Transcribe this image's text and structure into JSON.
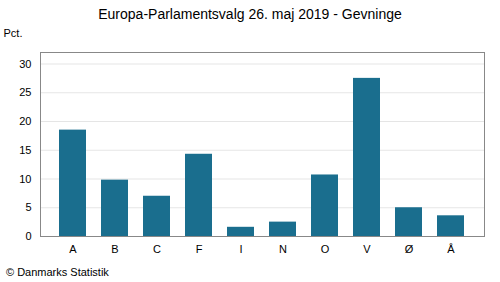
{
  "chart_data": {
    "type": "bar",
    "title": "Europa-Parlamentsvalg 26. maj 2019 - Gevninge",
    "categories": [
      "A",
      "B",
      "C",
      "F",
      "I",
      "N",
      "O",
      "V",
      "Ø",
      "Å"
    ],
    "values": [
      18.5,
      9.8,
      7.0,
      14.3,
      1.6,
      2.5,
      10.7,
      27.5,
      5.0,
      3.6
    ],
    "color": "#1a6e8e",
    "ylabel": "Pct.",
    "ylim": [
      0,
      32
    ],
    "yticks": [
      0,
      5,
      10,
      15,
      20,
      25,
      30
    ],
    "grid": true,
    "annotations": [
      "© Danmarks Statistik"
    ]
  }
}
